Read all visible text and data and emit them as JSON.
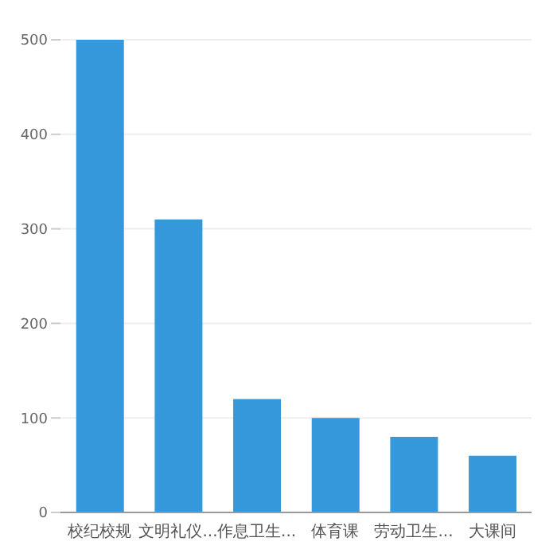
{
  "chart_data": {
    "type": "bar",
    "categories": [
      "校纪校规",
      "文明礼仪...",
      "作息卫生...",
      "体育课",
      "劳动卫生...",
      "大课间"
    ],
    "values": [
      500,
      310,
      120,
      100,
      80,
      60
    ],
    "color": "#3498db",
    "ylim": [
      0,
      500
    ],
    "yticks": [
      0,
      100,
      200,
      300,
      400,
      500
    ],
    "grid": "y"
  }
}
